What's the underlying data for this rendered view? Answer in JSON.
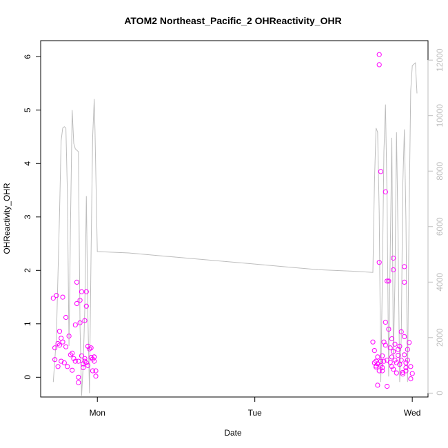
{
  "chart_data": {
    "type": "scatter",
    "title": "ATOM2 Northeast_Pacific_2 OHReactivity_OHR",
    "xlabel": "Date",
    "ylabel": "OHReactivity_OHR",
    "x_ticks": [
      {
        "value": 1.0,
        "label": "Mon"
      },
      {
        "value": 2.0,
        "label": "Tue"
      },
      {
        "value": 3.0,
        "label": "Wed"
      }
    ],
    "x_unit": "days",
    "xlim": [
      0.64,
      3.1
    ],
    "ylim": [
      -0.37,
      6.3
    ],
    "yticks": [
      0,
      1,
      2,
      3,
      4,
      5,
      6
    ],
    "y2lim": [
      -140,
      12700
    ],
    "y2ticks": [
      0,
      2000,
      4000,
      6000,
      8000,
      10000,
      12000
    ],
    "grid": false,
    "colors": {
      "points": "#ff00ff",
      "line": "#bdbdbd",
      "axis": "#000000",
      "right_axis": "#bdbdbd"
    },
    "series": [
      {
        "kind": "points",
        "x": [
          0.72,
          0.73,
          0.73,
          0.74,
          0.75,
          0.75,
          0.76,
          0.76,
          0.77,
          0.77,
          0.78,
          0.78,
          0.79,
          0.8,
          0.8,
          0.81,
          0.82,
          0.83,
          0.84,
          0.84,
          0.85,
          0.86,
          0.86,
          0.87,
          0.87,
          0.88,
          0.88,
          0.88,
          0.89,
          0.89,
          0.9,
          0.9,
          0.91,
          0.91,
          0.92,
          0.92,
          0.92,
          0.93,
          0.93,
          0.93,
          0.94,
          0.94,
          0.95,
          0.96,
          0.96,
          0.97,
          0.97,
          0.98,
          0.98,
          0.98,
          0.99,
          0.99,
          2.75,
          2.76,
          2.76,
          2.77,
          2.77,
          2.77,
          2.78,
          2.78,
          2.78,
          2.79,
          2.79,
          2.8,
          2.8,
          2.81,
          2.81,
          2.81,
          2.82,
          2.82,
          2.83,
          2.83,
          2.83,
          2.84,
          2.84,
          2.84,
          2.85,
          2.85,
          2.86,
          2.86,
          2.87,
          2.87,
          2.87,
          2.88,
          2.88,
          2.88,
          2.89,
          2.89,
          2.9,
          2.9,
          2.91,
          2.91,
          2.92,
          2.92,
          2.93,
          2.93,
          2.94,
          2.94,
          2.95,
          2.95,
          2.96,
          2.96,
          2.96,
          2.97,
          2.97,
          2.98,
          2.99,
          2.99,
          3.0
        ],
        "y": [
          1.48,
          0.33,
          0.55,
          1.53,
          0.63,
          0.2,
          0.6,
          0.86,
          0.3,
          0.73,
          1.5,
          0.66,
          0.27,
          1.12,
          0.57,
          0.2,
          0.77,
          0.42,
          0.13,
          0.45,
          0.35,
          0.98,
          0.3,
          1.78,
          1.38,
          0.3,
          -0.1,
          0.0,
          1.44,
          1.02,
          0.4,
          1.6,
          0.25,
          0.18,
          0.3,
          1.06,
          0.35,
          1.33,
          0.27,
          1.6,
          0.22,
          0.58,
          0.53,
          0.37,
          0.55,
          0.34,
          0.12,
          0.3,
          0.38,
          0.38,
          0.12,
          0.02,
          0.66,
          0.5,
          0.27,
          0.21,
          0.3,
          0.19,
          0.25,
          -0.15,
          0.38,
          0.12,
          2.15,
          0.3,
          0.22,
          0.12,
          0.18,
          0.4,
          0.66,
          0.3,
          0.6,
          1.03,
          3.47,
          1.8,
          0.32,
          -0.17,
          1.8,
          0.9,
          0.55,
          0.28,
          0.72,
          0.2,
          0.38,
          0.15,
          0.48,
          2.01,
          0.62,
          0.32,
          0.27,
          0.08,
          0.52,
          0.41,
          0.58,
          0.24,
          0.85,
          0.32,
          0.09,
          0.06,
          0.42,
          0.76,
          0.27,
          0.18,
          0.12,
          0.32,
          0.52,
          0.65,
          0.2,
          -0.03,
          0.07
        ],
        "extra": {
          "x": [
            2.79,
            2.79,
            2.8,
            2.88,
            2.95,
            2.95
          ],
          "y": [
            6.04,
            5.85,
            3.85,
            2.23,
            2.07,
            1.78
          ]
        }
      },
      {
        "kind": "line",
        "axis": "right",
        "x": [
          0.72,
          0.74,
          0.76,
          0.77,
          0.78,
          0.79,
          0.8,
          0.81,
          0.82,
          0.83,
          0.84,
          0.85,
          0.86,
          0.87,
          0.88,
          0.89,
          0.9,
          0.91,
          0.92,
          0.93,
          0.94,
          0.95,
          0.96,
          0.97,
          0.98,
          0.985,
          1.0,
          1.2,
          1.4,
          1.6,
          1.8,
          2.0,
          2.2,
          2.4,
          2.6,
          2.75,
          2.76,
          2.77,
          2.78,
          2.79,
          2.8,
          2.81,
          2.82,
          2.83,
          2.84,
          2.85,
          2.86,
          2.87,
          2.88,
          2.89,
          2.9,
          2.91,
          2.92,
          2.93,
          2.94,
          2.95,
          2.96,
          2.97,
          2.98,
          2.99,
          3.0,
          3.01,
          3.02,
          3.03
        ],
        "y": [
          400,
          2000,
          6500,
          9100,
          9550,
          9600,
          9550,
          7200,
          1700,
          6300,
          10200,
          9000,
          8800,
          8750,
          8700,
          2400,
          -100,
          1000,
          3000,
          7100,
          2800,
          0,
          5000,
          9200,
          10600,
          9500,
          5100,
          5050,
          4950,
          4850,
          4750,
          4650,
          4550,
          4450,
          4400,
          4350,
          7600,
          9550,
          9400,
          6500,
          400,
          4000,
          8700,
          10400,
          7000,
          600,
          5100,
          9200,
          1200,
          4000,
          9400,
          5500,
          400,
          2000,
          7500,
          9500,
          6200,
          400,
          6500,
          10900,
          11800,
          11850,
          11900,
          10800
        ]
      }
    ]
  }
}
